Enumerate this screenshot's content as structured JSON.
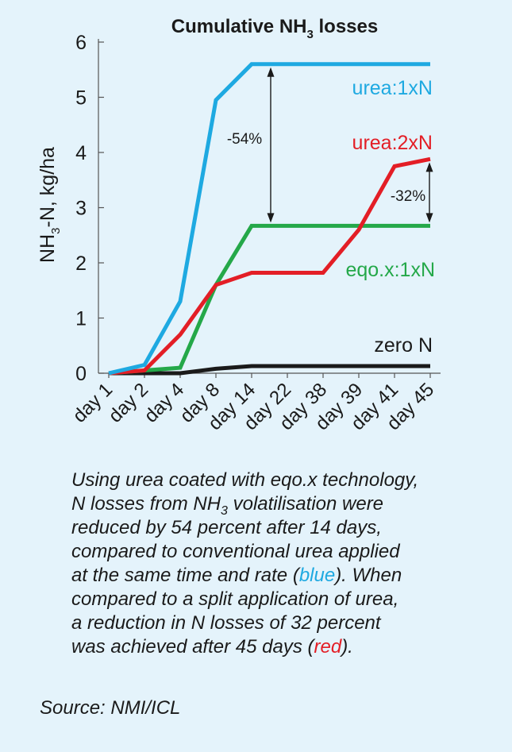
{
  "chart_data": {
    "type": "line",
    "title": "Cumulative NH3 losses",
    "title_parts": {
      "main": "Cumulative NH",
      "sub": "3",
      "tail": " losses"
    },
    "ylabel": "NH3-N, kg/ha",
    "ylabel_parts": {
      "main": "NH",
      "sub": "3",
      "tail": "-N, kg/ha"
    },
    "ylim": [
      0,
      6
    ],
    "yticks": [
      0,
      1,
      2,
      3,
      4,
      5,
      6
    ],
    "categories": [
      "day 1",
      "day 2",
      "day 4",
      "day 8",
      "day 14",
      "day 22",
      "day 38",
      "day 39",
      "day 41",
      "day 45"
    ],
    "grid": false,
    "series": [
      {
        "name": "urea:1xN",
        "color": "#1ea9e1",
        "values": [
          0,
          0.15,
          1.3,
          4.95,
          5.6,
          5.6,
          5.6,
          5.6,
          5.6,
          5.6
        ]
      },
      {
        "name": "urea:2xN",
        "color": "#e31e26",
        "values": [
          0,
          0.05,
          0.7,
          1.6,
          1.82,
          1.82,
          1.82,
          2.6,
          3.75,
          3.88
        ]
      },
      {
        "name": "eqo.x:1xN",
        "color": "#24a849",
        "values": [
          0,
          0.05,
          0.1,
          1.6,
          2.67,
          2.67,
          2.67,
          2.67,
          2.67,
          2.67
        ]
      },
      {
        "name": "zero N",
        "color": "#1a1a1a",
        "values": [
          0,
          0,
          0,
          0.08,
          0.13,
          0.13,
          0.13,
          0.13,
          0.13,
          0.13
        ]
      }
    ],
    "annotations": [
      {
        "text": "-54%",
        "from_series": "urea:1xN",
        "to_series": "eqo.x:1xN",
        "at": "day 14"
      },
      {
        "text": "-32%",
        "from_series": "urea:2xN",
        "to_series": "eqo.x:1xN",
        "at": "day 45"
      }
    ]
  },
  "caption": {
    "lines": [
      {
        "segments": [
          {
            "text": "Using urea coated with eqo.x technology,"
          }
        ]
      },
      {
        "segments": [
          {
            "text": "N losses from NH"
          },
          {
            "text": "3",
            "sub": true
          },
          {
            "text": " volatilisation were"
          }
        ]
      },
      {
        "segments": [
          {
            "text": "reduced by 54 percent after 14 days,"
          }
        ]
      },
      {
        "segments": [
          {
            "text": "compared to conventional urea applied"
          }
        ]
      },
      {
        "segments": [
          {
            "text": "at the same time and rate ("
          },
          {
            "text": "blue",
            "color": "#1ea9e1"
          },
          {
            "text": "). When"
          }
        ]
      },
      {
        "segments": [
          {
            "text": "compared to a split application of urea,"
          }
        ]
      },
      {
        "segments": [
          {
            "text": "a reduction in N losses of 32 percent"
          }
        ]
      },
      {
        "segments": [
          {
            "text": "was achieved after 45 days ("
          },
          {
            "text": "red",
            "color": "#e31e26"
          },
          {
            "text": ")."
          }
        ]
      }
    ]
  },
  "source": "Source: NMI/ICL"
}
